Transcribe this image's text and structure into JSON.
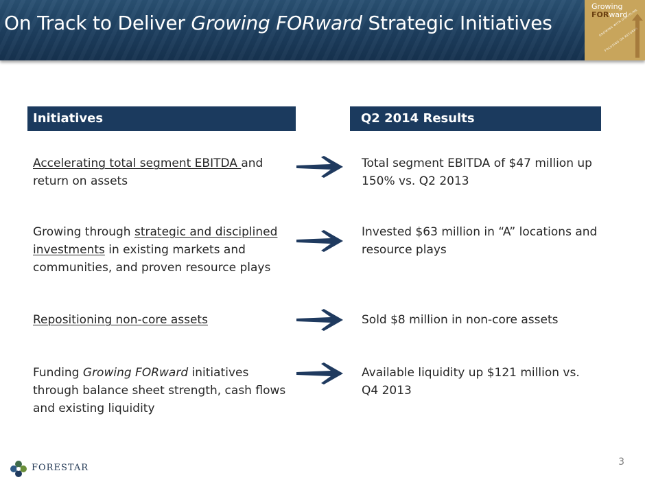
{
  "title": {
    "prefix": "On Track to Deliver ",
    "emphasis": "Growing FORward",
    "suffix": " Strategic Initiatives"
  },
  "badge": {
    "line1": "Growing",
    "line2_bold": "FOR",
    "line2_rest": "ward",
    "arc1": "GROWING WITH DISCIPLINE",
    "arc2": "FOCUSING ON RETURNS"
  },
  "headers": {
    "left": "Initiatives",
    "right": "Q2 2014 Results"
  },
  "rows": [
    {
      "initiative": {
        "underlined": "Accelerating total segment EBITDA ",
        "rest": "and return on assets"
      },
      "result": "Total segment EBITDA of $47 million up 150% vs. Q2 2013"
    },
    {
      "initiative": {
        "before": "Growing through ",
        "underlined": "strategic and disciplined investments",
        "rest": " in existing markets and communities, and proven resource plays"
      },
      "result": "Invested $63 million in “A” locations and resource plays"
    },
    {
      "initiative": {
        "underlined": "Repositioning non-core assets"
      },
      "result": "Sold $8 million in non-core assets"
    },
    {
      "initiative": {
        "before": "Funding ",
        "italic": "Growing FORward",
        "rest": " initiatives through balance sheet strength, cash flows and existing liquidity"
      },
      "result": "Available liquidity up $121 million vs. Q4 2013"
    }
  ],
  "footer": {
    "company": "FORESTAR",
    "page": "3"
  },
  "colors": {
    "header_bg": "#1b3a5e",
    "arrow": "#1f3a5f",
    "badge": "#c8a55c"
  }
}
